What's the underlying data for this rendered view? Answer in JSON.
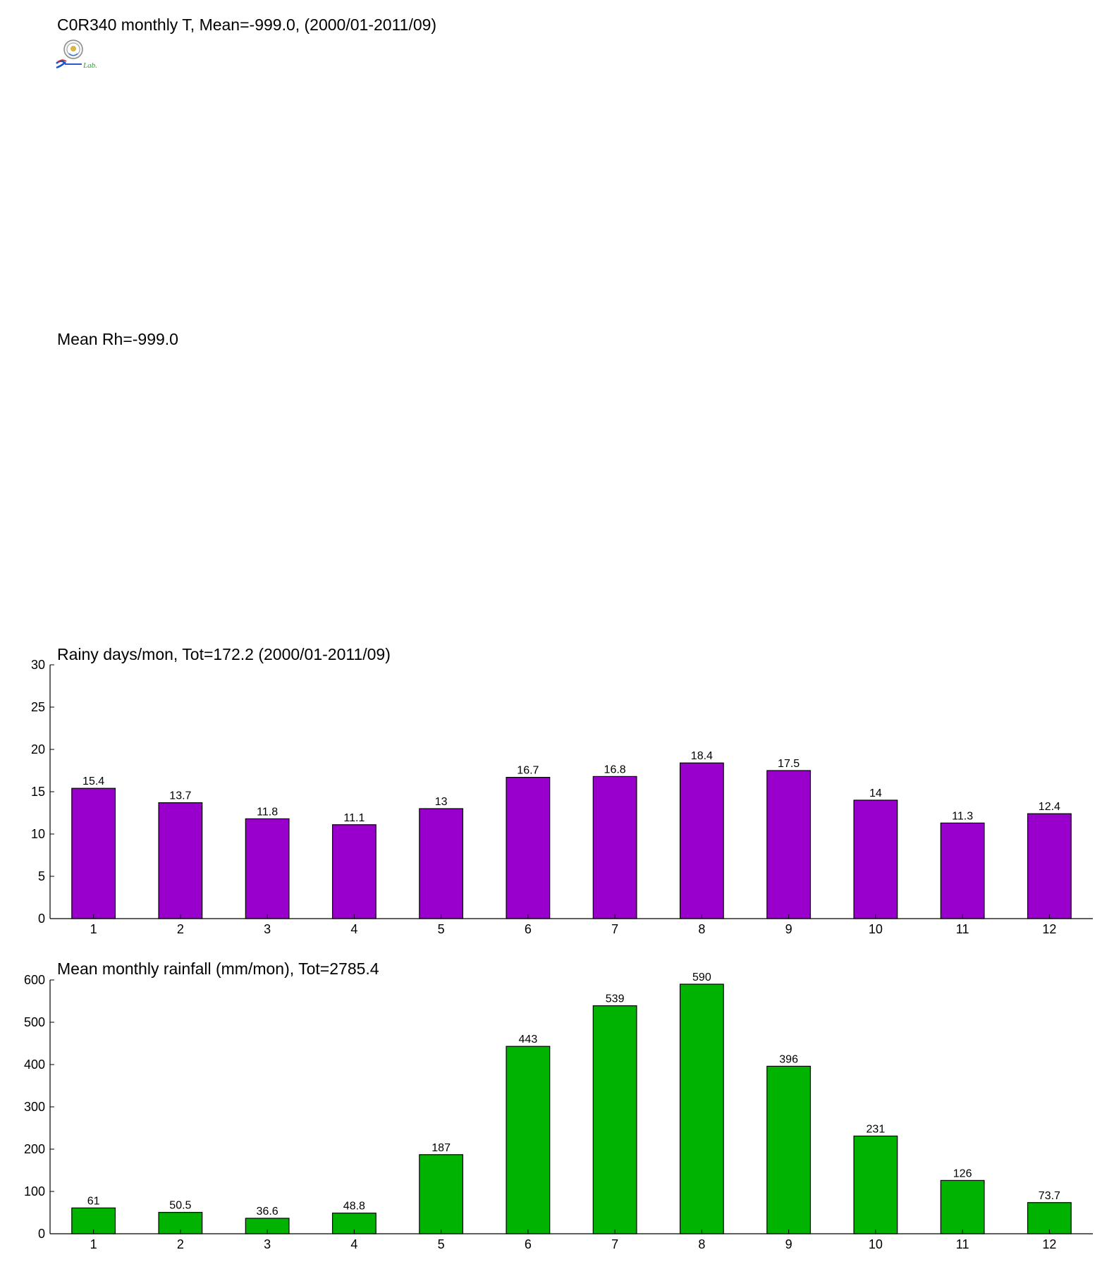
{
  "header": {
    "title": "C0R340 monthly T, Mean=-999.0, (2000/01-2011/09)",
    "rh_title": "Mean Rh=-999.0",
    "logo_text": "Lab."
  },
  "chart_data": [
    {
      "type": "bar",
      "title": "Rainy days/mon, Tot=172.2 (2000/01-2011/09)",
      "categories": [
        "1",
        "2",
        "3",
        "4",
        "5",
        "6",
        "7",
        "8",
        "9",
        "10",
        "11",
        "12"
      ],
      "values": [
        15.4,
        13.7,
        11.8,
        11.1,
        13,
        16.7,
        16.8,
        18.4,
        17.5,
        14,
        11.3,
        12.4
      ],
      "value_labels": [
        "15.4",
        "13.7",
        "11.8",
        "11.1",
        "13",
        "16.7",
        "16.8",
        "18.4",
        "17.5",
        "14",
        "11.3",
        "12.4"
      ],
      "ylim": [
        0,
        30
      ],
      "yticks": [
        0,
        5,
        10,
        15,
        20,
        25,
        30
      ],
      "color": "#9900cc",
      "grid": false
    },
    {
      "type": "bar",
      "title": "Mean monthly rainfall (mm/mon), Tot=2785.4",
      "categories": [
        "1",
        "2",
        "3",
        "4",
        "5",
        "6",
        "7",
        "8",
        "9",
        "10",
        "11",
        "12"
      ],
      "values": [
        61,
        50.5,
        36.6,
        48.8,
        187,
        443,
        539,
        590,
        396,
        231,
        126,
        73.7
      ],
      "value_labels": [
        "61",
        "50.5",
        "36.6",
        "48.8",
        "187",
        "443",
        "539",
        "590",
        "396",
        "231",
        "126",
        "73.7"
      ],
      "ylim": [
        0,
        600
      ],
      "yticks": [
        0,
        100,
        200,
        300,
        400,
        500,
        600
      ],
      "color": "#00b300",
      "grid": false
    }
  ]
}
